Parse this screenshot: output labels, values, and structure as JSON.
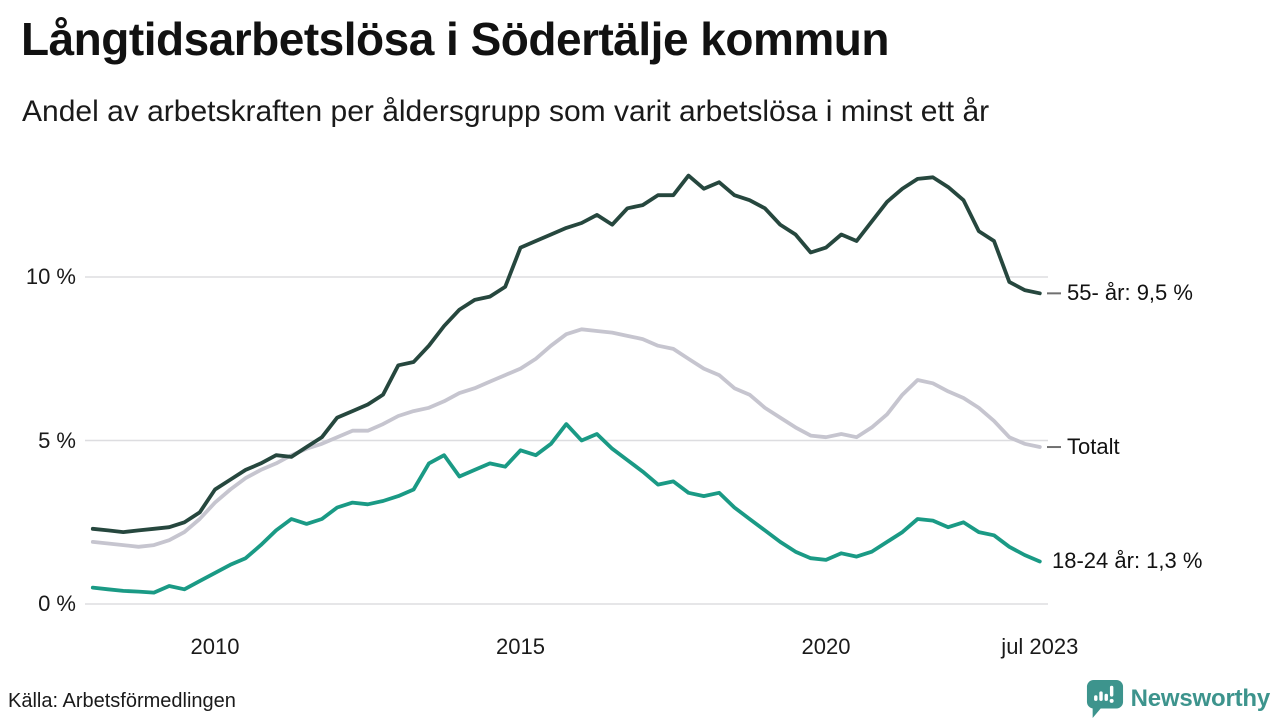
{
  "header": {
    "title": "Långtidsarbetslösa i Södertälje kommun",
    "subtitle": "Andel av arbetskraften per åldersgrupp som varit arbetslösa i minst ett år"
  },
  "footer": {
    "source": "Källa: Arbetsförmedlingen",
    "brand_name": "Newsworthy"
  },
  "colors": {
    "series_55": "#26473e",
    "series_total": "#c6c5cf",
    "series_18_24": "#1a9a85",
    "gridline": "#dddde0",
    "end_tick": "#707070",
    "brand_teal": "#3d948d",
    "text": "#1a1a1a"
  },
  "chart_data": {
    "type": "line",
    "title": "Långtidsarbetslösa i Södertälje kommun",
    "subtitle": "Andel av arbetskraften per åldersgrupp som varit arbetslösa i minst ett år",
    "source": "Källa: Arbetsförmedlingen",
    "grid": true,
    "legend_position": "right-end-labels",
    "x_start_year": 2008,
    "x_step_years": 0.25,
    "x_axis": {
      "range_years": [
        2008,
        2023.5
      ],
      "ticks": [
        "2010",
        "2015",
        "2020",
        "jul 2023"
      ],
      "tick_years": [
        2010,
        2015,
        2020,
        2023.5
      ]
    },
    "y_axis": {
      "unit": "%",
      "range": [
        0,
        14
      ],
      "ticks": [
        "0 %",
        "5 %",
        "10 %"
      ],
      "tick_values": [
        0,
        5,
        10
      ]
    },
    "series": [
      {
        "name": "55- år",
        "end_label": "55- år: 9,5 %",
        "last_value": 9.5,
        "color": "#26473e",
        "tick_dash": true,
        "label_x": 1067,
        "values": [
          2.3,
          2.25,
          2.2,
          2.25,
          2.3,
          2.35,
          2.5,
          2.8,
          3.5,
          3.8,
          4.1,
          4.3,
          4.55,
          4.5,
          4.8,
          5.1,
          5.7,
          5.9,
          6.1,
          6.4,
          7.3,
          7.4,
          7.9,
          8.5,
          9.0,
          9.3,
          9.4,
          9.7,
          10.9,
          11.1,
          11.3,
          11.5,
          11.65,
          11.9,
          11.6,
          12.1,
          12.2,
          12.5,
          12.5,
          13.1,
          12.7,
          12.9,
          12.5,
          12.35,
          12.1,
          11.6,
          11.3,
          10.75,
          10.9,
          11.3,
          11.1,
          11.7,
          12.3,
          12.7,
          13.0,
          13.05,
          12.75,
          12.35,
          11.4,
          11.1,
          9.85,
          9.6,
          9.5
        ]
      },
      {
        "name": "Totalt",
        "end_label": "Totalt",
        "last_value": 4.8,
        "color": "#c6c5cf",
        "tick_dash": true,
        "label_x": 1067,
        "values": [
          1.9,
          1.85,
          1.8,
          1.75,
          1.8,
          1.95,
          2.2,
          2.6,
          3.1,
          3.5,
          3.85,
          4.1,
          4.3,
          4.55,
          4.75,
          4.9,
          5.1,
          5.3,
          5.3,
          5.5,
          5.75,
          5.9,
          6.0,
          6.2,
          6.45,
          6.6,
          6.8,
          7.0,
          7.2,
          7.5,
          7.9,
          8.25,
          8.4,
          8.35,
          8.3,
          8.2,
          8.1,
          7.9,
          7.8,
          7.5,
          7.2,
          7.0,
          6.6,
          6.4,
          6.0,
          5.7,
          5.4,
          5.15,
          5.1,
          5.2,
          5.1,
          5.4,
          5.8,
          6.4,
          6.85,
          6.75,
          6.5,
          6.3,
          6.0,
          5.6,
          5.1,
          4.9,
          4.8
        ]
      },
      {
        "name": "18-24 år",
        "end_label": "18-24 år: 1,3 %",
        "last_value": 1.3,
        "color": "#1a9a85",
        "tick_dash": false,
        "label_x": 1052,
        "values": [
          0.5,
          0.45,
          0.4,
          0.38,
          0.35,
          0.55,
          0.45,
          0.7,
          0.95,
          1.2,
          1.4,
          1.8,
          2.25,
          2.6,
          2.45,
          2.6,
          2.95,
          3.1,
          3.05,
          3.15,
          3.3,
          3.5,
          4.3,
          4.55,
          3.9,
          4.1,
          4.3,
          4.2,
          4.7,
          4.55,
          4.9,
          5.5,
          5.0,
          5.2,
          4.75,
          4.4,
          4.05,
          3.65,
          3.75,
          3.4,
          3.3,
          3.4,
          2.95,
          2.6,
          2.25,
          1.9,
          1.6,
          1.4,
          1.35,
          1.55,
          1.45,
          1.6,
          1.9,
          2.2,
          2.6,
          2.55,
          2.35,
          2.5,
          2.2,
          2.1,
          1.75,
          1.5,
          1.3
        ]
      }
    ]
  }
}
